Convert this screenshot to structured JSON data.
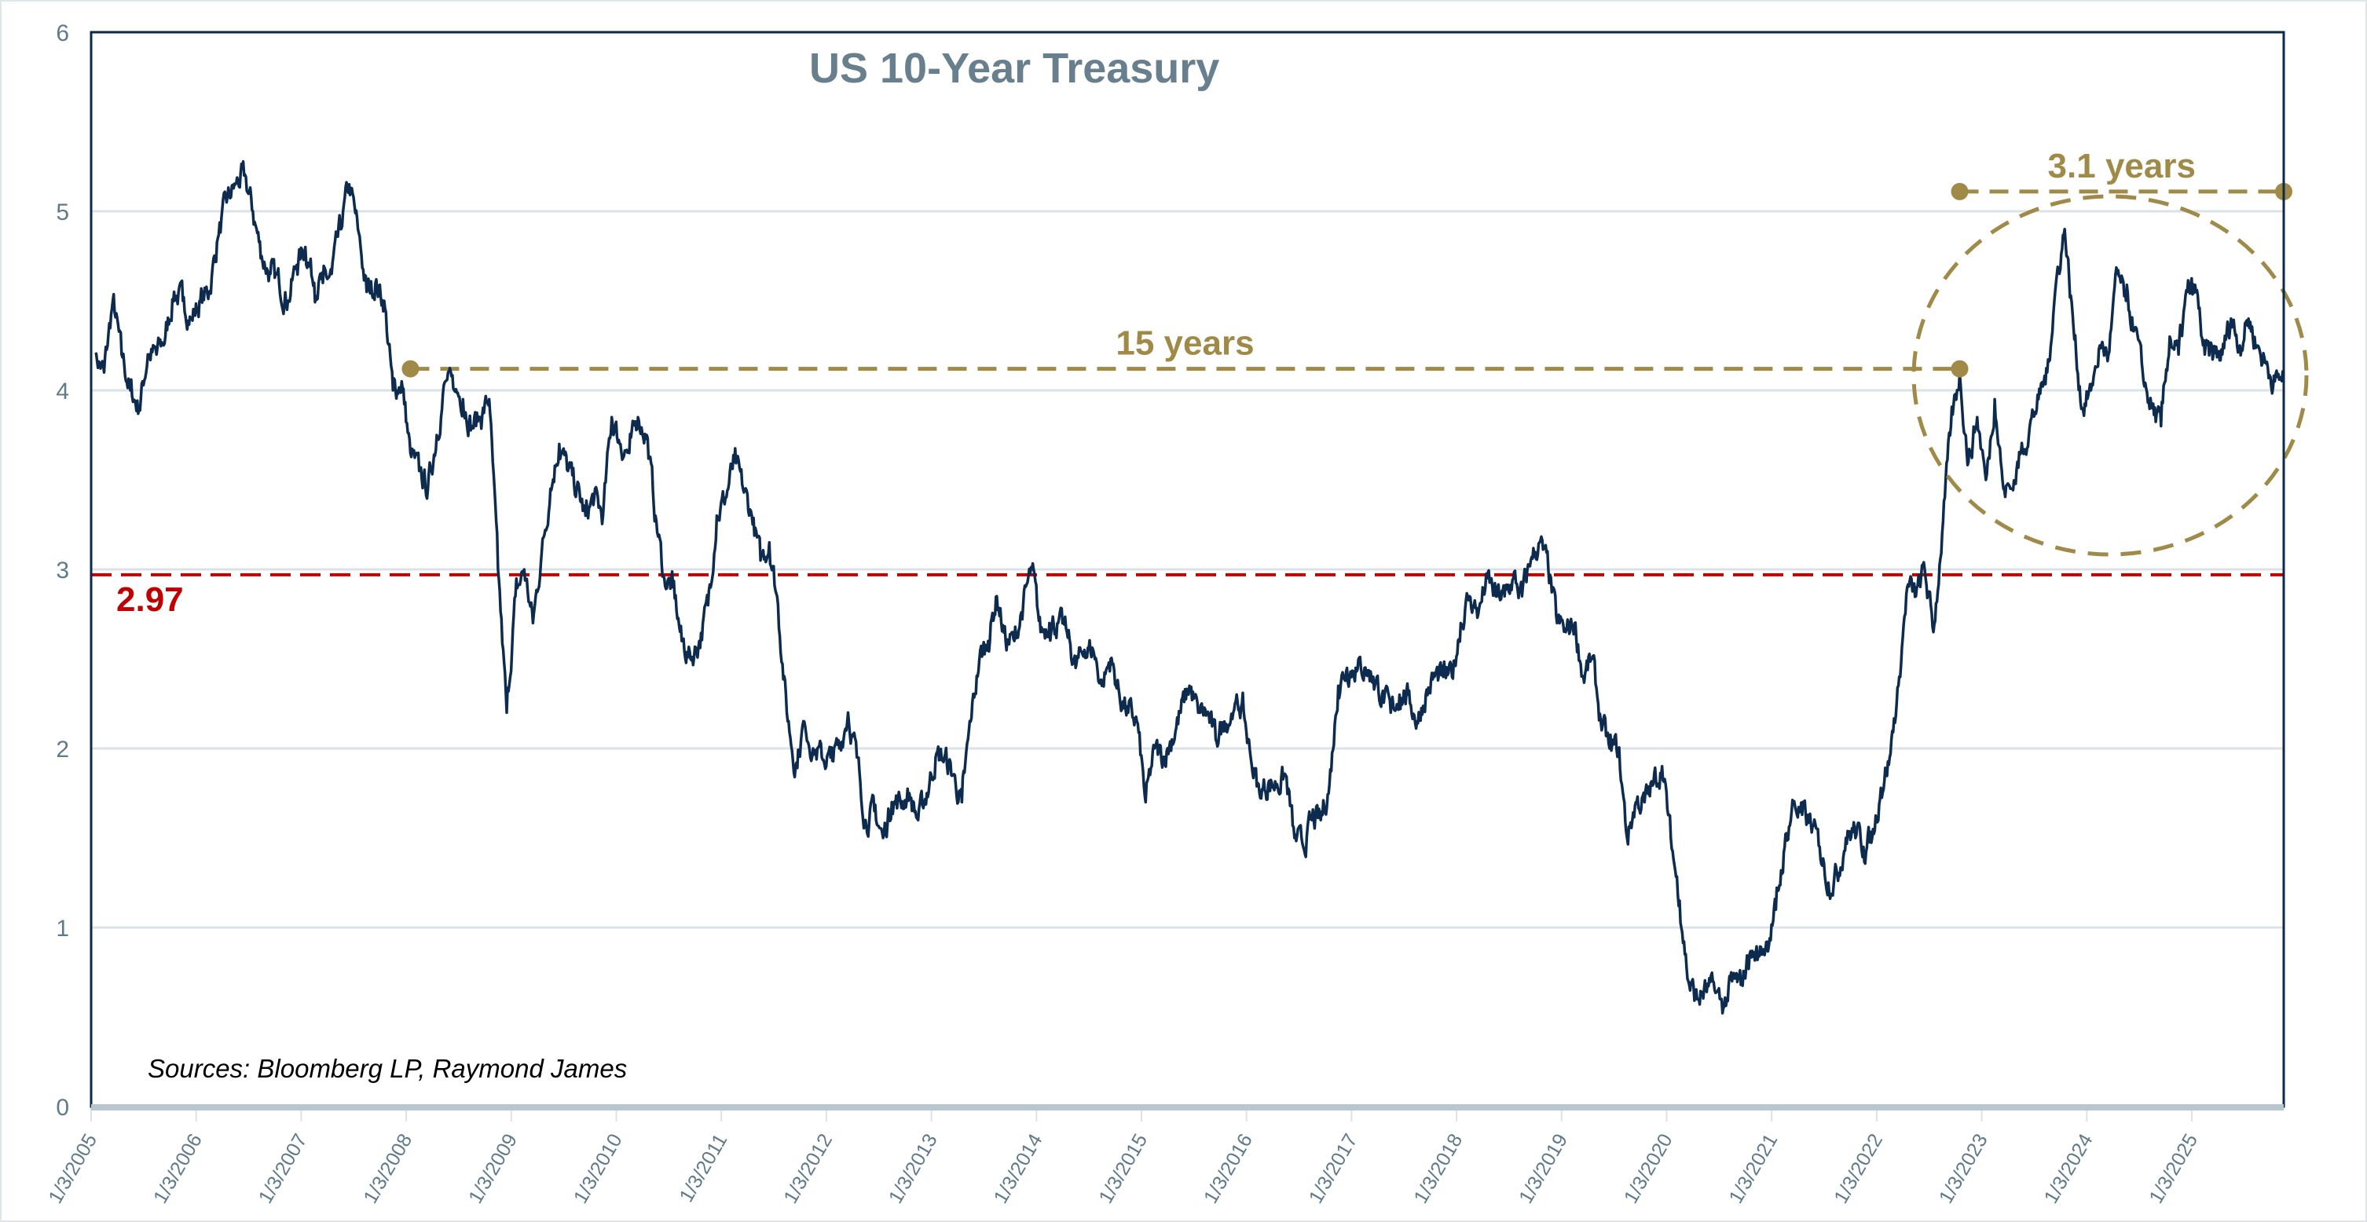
{
  "chart_data": {
    "type": "line",
    "title": "US 10-Year Treasury",
    "xlabel": "",
    "ylabel": "",
    "ylim": [
      0,
      6
    ],
    "yticks": [
      "0",
      "1",
      "2",
      "3",
      "4",
      "5",
      "6"
    ],
    "grid": "horizontal",
    "xticks": [
      "1/3/2005",
      "1/3/2006",
      "1/3/2007",
      "1/3/2008",
      "1/3/2009",
      "1/3/2010",
      "1/3/2011",
      "1/3/2012",
      "1/3/2013",
      "1/3/2014",
      "1/3/2015",
      "1/3/2016",
      "1/3/2017",
      "1/3/2018",
      "1/3/2019",
      "1/3/2020",
      "1/3/2021",
      "1/3/2022",
      "1/3/2023",
      "1/3/2024",
      "1/3/2025"
    ],
    "xlim": [
      "2005-01-03",
      "2025-11"
    ],
    "series": [
      {
        "color": "#0d2b4e",
        "start": "2005-01",
        "frequency": "monthly",
        "values": [
          4.2,
          4.1,
          4.5,
          4.2,
          4.0,
          3.9,
          4.2,
          4.2,
          4.3,
          4.55,
          4.5,
          4.4,
          4.5,
          4.55,
          4.85,
          5.05,
          5.15,
          5.2,
          5.0,
          4.75,
          4.65,
          4.6,
          4.5,
          4.7,
          4.8,
          4.6,
          4.6,
          4.65,
          4.9,
          5.15,
          4.9,
          4.55,
          4.6,
          4.5,
          4.0,
          4.05,
          3.65,
          3.55,
          3.45,
          3.75,
          4.05,
          4.0,
          3.95,
          3.8,
          3.85,
          3.95,
          3.0,
          2.2,
          2.85,
          3.0,
          2.7,
          3.1,
          3.45,
          3.7,
          3.55,
          3.45,
          3.3,
          3.4,
          3.3,
          3.85,
          3.7,
          3.65,
          3.85,
          3.75,
          3.3,
          2.95,
          2.9,
          2.6,
          2.5,
          2.6,
          2.8,
          3.3,
          3.4,
          3.6,
          3.45,
          3.3,
          3.05,
          3.15,
          2.8,
          2.2,
          1.9,
          2.15,
          2.0,
          1.95,
          1.95,
          2.0,
          2.2,
          1.95,
          1.6,
          1.65,
          1.5,
          1.7,
          1.7,
          1.75,
          1.6,
          1.75,
          1.95,
          1.95,
          1.85,
          1.7,
          2.15,
          2.5,
          2.6,
          2.85,
          2.6,
          2.6,
          2.8,
          3.0,
          2.65,
          2.7,
          2.7,
          2.65,
          2.45,
          2.55,
          2.55,
          2.35,
          2.5,
          2.3,
          2.2,
          2.15,
          1.7,
          2.0,
          1.95,
          2.05,
          2.2,
          2.35,
          2.2,
          2.2,
          2.05,
          2.15,
          2.2,
          2.25,
          1.95,
          1.75,
          1.8,
          1.8,
          1.85,
          1.5,
          1.45,
          1.6,
          1.6,
          1.8,
          2.35,
          2.45,
          2.45,
          2.45,
          2.4,
          2.3,
          2.2,
          2.3,
          2.3,
          2.15,
          2.3,
          2.4,
          2.4,
          2.4,
          2.7,
          2.85,
          2.75,
          2.95,
          2.85,
          2.85,
          2.95,
          2.85,
          3.05,
          3.15,
          3.0,
          2.7,
          2.65,
          2.7,
          2.4,
          2.5,
          2.15,
          2.0,
          2.0,
          1.5,
          1.7,
          1.7,
          1.8,
          1.9,
          1.5,
          1.15,
          0.7,
          0.6,
          0.65,
          0.65,
          0.55,
          0.7,
          0.68,
          0.85,
          0.85,
          0.92,
          1.1,
          1.45,
          1.7,
          1.63,
          1.58,
          1.45,
          1.25,
          1.3,
          1.5,
          1.55,
          1.45,
          1.5,
          1.78,
          1.95,
          2.35,
          2.9,
          2.85,
          3.0,
          2.65,
          3.2,
          3.8,
          4.1,
          3.6,
          3.85,
          3.5,
          3.95,
          3.45,
          3.45,
          3.65,
          3.8,
          3.95,
          4.1,
          4.6,
          4.9,
          4.35,
          3.9,
          4.0,
          4.25,
          4.2,
          4.65,
          4.5,
          4.35,
          4.05,
          3.9,
          3.8,
          4.3,
          4.2,
          4.55,
          4.55,
          4.2,
          4.2,
          4.2,
          4.4,
          4.25,
          4.4,
          4.25,
          4.15,
          4.05,
          4.08
        ]
      }
    ],
    "annotations": {
      "reference_line": {
        "value": 2.97,
        "label": "2.97",
        "color": "#c00000"
      },
      "span_15": {
        "label": "15 years",
        "from": "2008-01",
        "to": "2022-10",
        "value": 4.12,
        "color": "#a08a48"
      },
      "span_3_1": {
        "label": "3.1 years",
        "from": "2022-10",
        "to": "2025-11",
        "value": 5.11,
        "color": "#a08a48"
      },
      "highlight_circle": {
        "color": "#a08a48"
      }
    },
    "source": "Sources: Bloomberg LP, Raymond James"
  }
}
